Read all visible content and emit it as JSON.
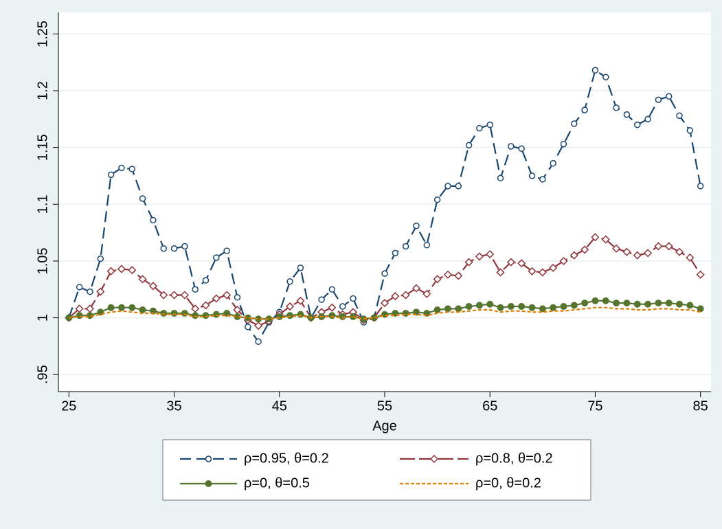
{
  "chart_data": {
    "type": "line",
    "x_label": "Age",
    "x": [
      25,
      26,
      27,
      28,
      29,
      30,
      31,
      32,
      33,
      34,
      35,
      36,
      37,
      38,
      39,
      40,
      41,
      42,
      43,
      44,
      45,
      46,
      47,
      48,
      49,
      50,
      51,
      52,
      53,
      54,
      55,
      56,
      57,
      58,
      59,
      60,
      61,
      62,
      63,
      64,
      65,
      66,
      67,
      68,
      69,
      70,
      71,
      72,
      73,
      74,
      75,
      76,
      77,
      78,
      79,
      80,
      81,
      82,
      83,
      84,
      85
    ],
    "xlim": [
      24,
      86
    ],
    "xticks": [
      25,
      35,
      45,
      55,
      65,
      75,
      85
    ],
    "ylim": [
      0.935,
      1.269
    ],
    "yticks": [
      {
        "value": 0.95,
        "label": ".95"
      },
      1,
      1.05,
      1.1,
      1.15,
      1.2,
      1.25
    ],
    "grid": true,
    "series": [
      {
        "name": "ρ=0.95, θ=0.2",
        "color": "#1a476f",
        "marker": "circle-open",
        "dash": "long",
        "values": [
          1.0,
          1.027,
          1.023,
          1.052,
          1.126,
          1.132,
          1.131,
          1.105,
          1.086,
          1.061,
          1.061,
          1.063,
          1.025,
          1.033,
          1.053,
          1.059,
          1.018,
          0.992,
          0.979,
          0.996,
          1.005,
          1.032,
          1.044,
          1.0,
          1.016,
          1.025,
          1.01,
          1.017,
          0.996,
          1.0,
          1.039,
          1.057,
          1.063,
          1.081,
          1.064,
          1.104,
          1.116,
          1.116,
          1.152,
          1.167,
          1.17,
          1.123,
          1.151,
          1.149,
          1.125,
          1.122,
          1.136,
          1.153,
          1.171,
          1.183,
          1.218,
          1.212,
          1.185,
          1.179,
          1.17,
          1.175,
          1.192,
          1.195,
          1.178,
          1.165,
          1.116
        ]
      },
      {
        "name": "ρ=0.8, θ=0.2",
        "color": "#90353b",
        "marker": "diamond-open",
        "dash": "longshort",
        "values": [
          1.0,
          1.008,
          1.008,
          1.023,
          1.041,
          1.043,
          1.042,
          1.034,
          1.028,
          1.02,
          1.02,
          1.02,
          1.008,
          1.011,
          1.017,
          1.02,
          1.007,
          0.998,
          0.993,
          0.997,
          1.003,
          1.01,
          1.015,
          1.0,
          1.005,
          1.009,
          1.003,
          1.005,
          0.998,
          1.0,
          1.013,
          1.019,
          1.02,
          1.026,
          1.021,
          1.034,
          1.038,
          1.037,
          1.049,
          1.054,
          1.056,
          1.04,
          1.049,
          1.048,
          1.041,
          1.04,
          1.044,
          1.05,
          1.055,
          1.06,
          1.071,
          1.069,
          1.061,
          1.058,
          1.055,
          1.057,
          1.063,
          1.063,
          1.058,
          1.053,
          1.038
        ]
      },
      {
        "name": "ρ=0, θ=0.5",
        "color": "#55752f",
        "marker": "circle-filled",
        "dash": "solid",
        "values": [
          1.0,
          1.002,
          1.002,
          1.005,
          1.009,
          1.009,
          1.009,
          1.007,
          1.006,
          1.004,
          1.004,
          1.004,
          1.002,
          1.002,
          1.003,
          1.004,
          1.001,
          1.0,
          0.999,
          0.999,
          1.001,
          1.002,
          1.003,
          1.0,
          1.001,
          1.002,
          1.001,
          1.001,
          0.999,
          1.0,
          1.003,
          1.004,
          1.004,
          1.005,
          1.004,
          1.007,
          1.008,
          1.008,
          1.01,
          1.011,
          1.012,
          1.009,
          1.01,
          1.01,
          1.009,
          1.008,
          1.009,
          1.01,
          1.011,
          1.013,
          1.015,
          1.015,
          1.013,
          1.013,
          1.012,
          1.012,
          1.013,
          1.013,
          1.012,
          1.011,
          1.008
        ]
      },
      {
        "name": "ρ=0, θ=0.2",
        "color": "#e37e00",
        "marker": "none",
        "dash": "short",
        "values": [
          1.0,
          1.001,
          1.001,
          1.003,
          1.005,
          1.006,
          1.005,
          1.004,
          1.004,
          1.003,
          1.003,
          1.003,
          1.001,
          1.001,
          1.002,
          1.002,
          1.001,
          1.0,
          0.999,
          0.999,
          1.0,
          1.001,
          1.002,
          1.0,
          1.001,
          1.001,
          1.0,
          1.001,
          0.999,
          1.0,
          1.002,
          1.002,
          1.003,
          1.003,
          1.002,
          1.004,
          1.005,
          1.005,
          1.006,
          1.007,
          1.007,
          1.005,
          1.006,
          1.006,
          1.005,
          1.005,
          1.006,
          1.006,
          1.007,
          1.008,
          1.009,
          1.009,
          1.008,
          1.008,
          1.007,
          1.007,
          1.008,
          1.008,
          1.007,
          1.007,
          1.005
        ]
      }
    ]
  }
}
